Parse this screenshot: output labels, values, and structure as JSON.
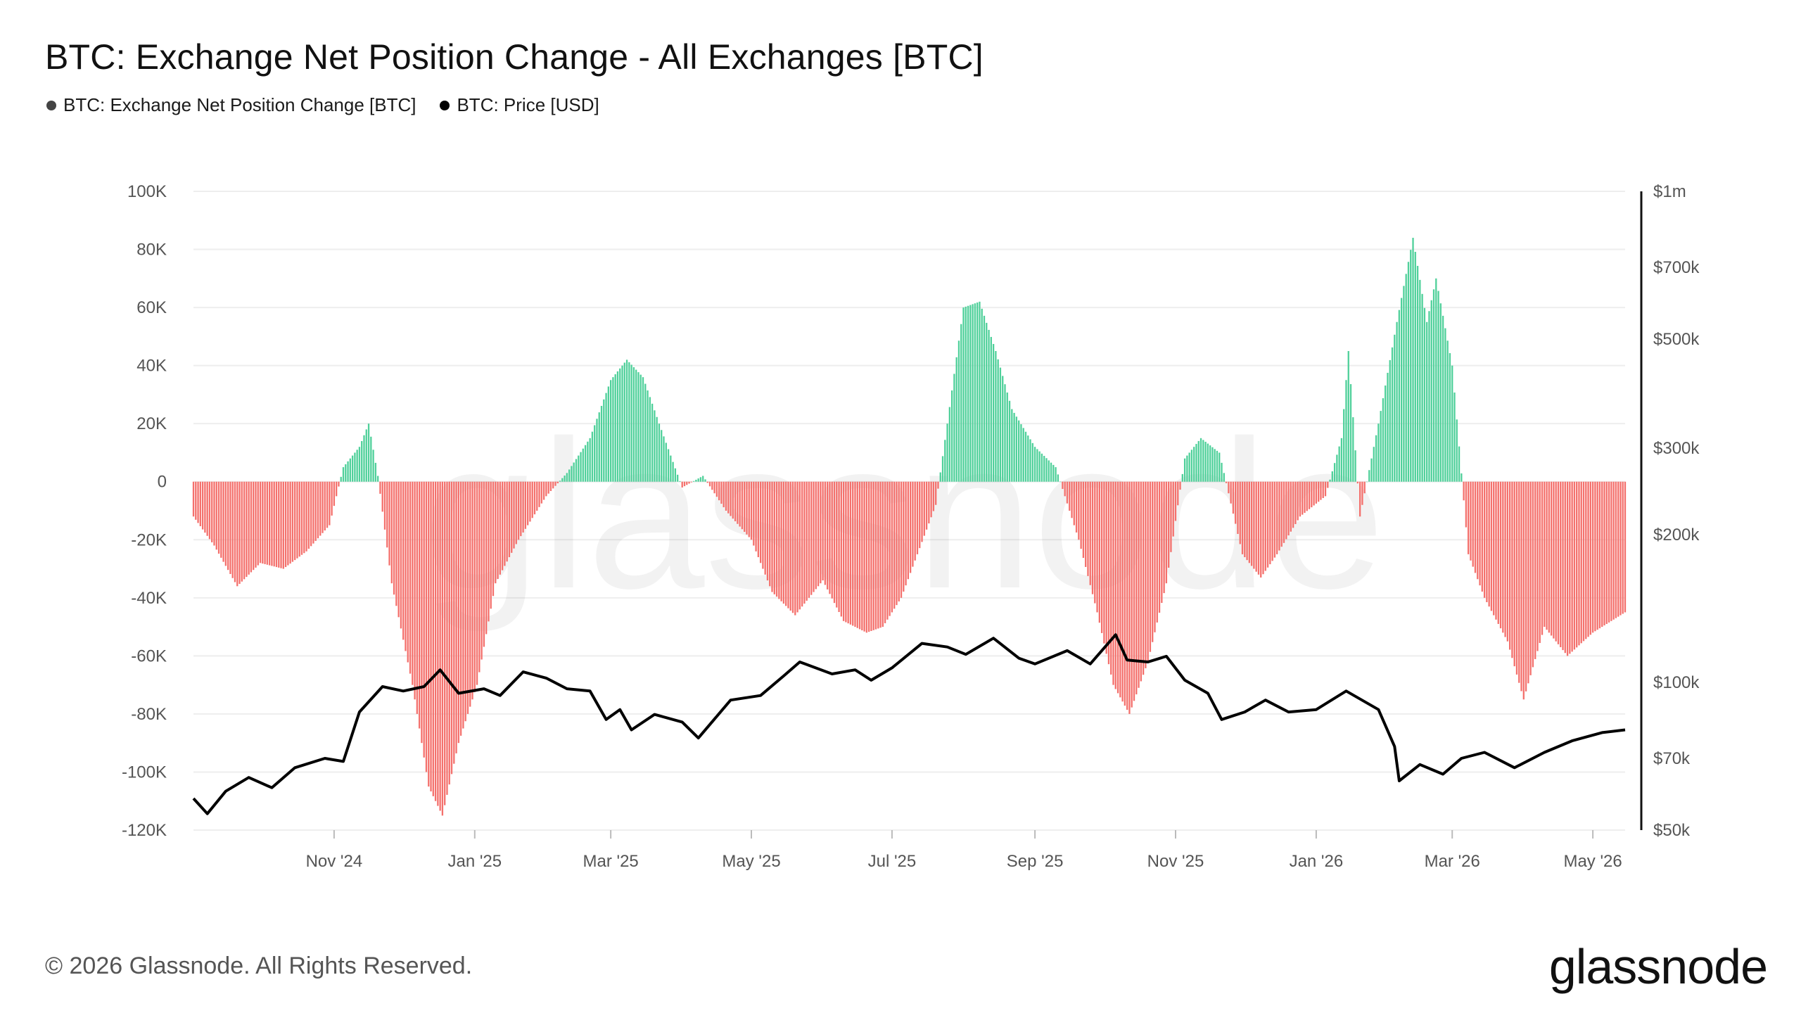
{
  "title": "BTC: Exchange Net Position Change - All Exchanges [BTC]",
  "legend": [
    {
      "label": "BTC: Exchange Net Position Change [BTC]",
      "color": "#444444"
    },
    {
      "label": "BTC: Price [USD]",
      "color": "#000000"
    }
  ],
  "footer": {
    "copyright": "© 2026 Glassnode. All Rights Reserved.",
    "brand": "glassnode"
  },
  "watermark": "glassnode",
  "colors": {
    "positive": "#4fd09a",
    "negative": "#f4706c",
    "price_line": "#000000",
    "grid": "#eeeeee"
  },
  "chart_data": {
    "type": "bar",
    "title": "BTC: Exchange Net Position Change - All Exchanges [BTC]",
    "x_range": [
      "2024-09-01",
      "2026-05-15"
    ],
    "x_ticks": [
      {
        "label": "Nov '24",
        "date": "2024-11-01"
      },
      {
        "label": "Jan '25",
        "date": "2025-01-01"
      },
      {
        "label": "Mar '25",
        "date": "2025-03-01"
      },
      {
        "label": "May '25",
        "date": "2025-05-01"
      },
      {
        "label": "Jul '25",
        "date": "2025-07-01"
      },
      {
        "label": "Sep '25",
        "date": "2025-09-01"
      },
      {
        "label": "Nov '25",
        "date": "2025-11-01"
      },
      {
        "label": "Jan '26",
        "date": "2026-01-01"
      },
      {
        "label": "Mar '26",
        "date": "2026-03-01"
      },
      {
        "label": "May '26",
        "date": "2026-05-01"
      }
    ],
    "y_left": {
      "ylim": [
        -120000,
        100000
      ],
      "ticks": [
        {
          "label": "100K",
          "value": 100000
        },
        {
          "label": "80K",
          "value": 80000
        },
        {
          "label": "60K",
          "value": 60000
        },
        {
          "label": "40K",
          "value": 40000
        },
        {
          "label": "20K",
          "value": 20000
        },
        {
          "label": "0",
          "value": 0
        },
        {
          "label": "-20K",
          "value": -20000
        },
        {
          "label": "-40K",
          "value": -40000
        },
        {
          "label": "-60K",
          "value": -60000
        },
        {
          "label": "-80K",
          "value": -80000
        },
        {
          "label": "-100K",
          "value": -100000
        },
        {
          "label": "-120K",
          "value": -120000
        }
      ]
    },
    "y_right": {
      "scale": "log",
      "ylim": [
        50000,
        1000000
      ],
      "ticks": [
        {
          "label": "$1m",
          "value": 1000000
        },
        {
          "label": "$700k",
          "value": 700000
        },
        {
          "label": "$500k",
          "value": 500000
        },
        {
          "label": "$300k",
          "value": 300000
        },
        {
          "label": "$200k",
          "value": 200000
        },
        {
          "label": "$100k",
          "value": 100000
        },
        {
          "label": "$70k",
          "value": 70000
        },
        {
          "label": "$50k",
          "value": 50000
        }
      ]
    },
    "series": [
      {
        "name": "BTC: Exchange Net Position Change [BTC]",
        "type": "bar",
        "points": [
          [
            "2024-09-01",
            -12000
          ],
          [
            "2024-09-10",
            -22000
          ],
          [
            "2024-09-20",
            -36000
          ],
          [
            "2024-09-30",
            -28000
          ],
          [
            "2024-10-10",
            -30000
          ],
          [
            "2024-10-20",
            -24000
          ],
          [
            "2024-10-30",
            -15000
          ],
          [
            "2024-11-05",
            5000
          ],
          [
            "2024-11-12",
            12000
          ],
          [
            "2024-11-16",
            20000
          ],
          [
            "2024-11-20",
            2000
          ],
          [
            "2024-11-26",
            -35000
          ],
          [
            "2024-12-05",
            -70000
          ],
          [
            "2024-12-12",
            -105000
          ],
          [
            "2024-12-18",
            -115000
          ],
          [
            "2024-12-25",
            -90000
          ],
          [
            "2025-01-02",
            -70000
          ],
          [
            "2025-01-10",
            -35000
          ],
          [
            "2025-01-20",
            -20000
          ],
          [
            "2025-02-01",
            -5000
          ],
          [
            "2025-02-10",
            3000
          ],
          [
            "2025-02-20",
            15000
          ],
          [
            "2025-03-01",
            35000
          ],
          [
            "2025-03-08",
            42000
          ],
          [
            "2025-03-15",
            36000
          ],
          [
            "2025-03-22",
            20000
          ],
          [
            "2025-04-01",
            -2000
          ],
          [
            "2025-04-10",
            2000
          ],
          [
            "2025-04-20",
            -10000
          ],
          [
            "2025-05-01",
            -20000
          ],
          [
            "2025-05-10",
            -38000
          ],
          [
            "2025-05-20",
            -46000
          ],
          [
            "2025-06-01",
            -34000
          ],
          [
            "2025-06-10",
            -48000
          ],
          [
            "2025-06-20",
            -52000
          ],
          [
            "2025-06-27",
            -50000
          ],
          [
            "2025-07-05",
            -40000
          ],
          [
            "2025-07-12",
            -25000
          ],
          [
            "2025-07-20",
            -8000
          ],
          [
            "2025-07-25",
            20000
          ],
          [
            "2025-08-01",
            60000
          ],
          [
            "2025-08-08",
            62000
          ],
          [
            "2025-08-15",
            45000
          ],
          [
            "2025-08-22",
            25000
          ],
          [
            "2025-09-01",
            12000
          ],
          [
            "2025-09-10",
            5000
          ],
          [
            "2025-09-20",
            -20000
          ],
          [
            "2025-09-28",
            -45000
          ],
          [
            "2025-10-05",
            -70000
          ],
          [
            "2025-10-12",
            -80000
          ],
          [
            "2025-10-20",
            -62000
          ],
          [
            "2025-10-28",
            -35000
          ],
          [
            "2025-11-05",
            8000
          ],
          [
            "2025-11-12",
            15000
          ],
          [
            "2025-11-20",
            10000
          ],
          [
            "2025-11-30",
            -25000
          ],
          [
            "2025-12-08",
            -33000
          ],
          [
            "2025-12-15",
            -25000
          ],
          [
            "2025-12-25",
            -12000
          ],
          [
            "2026-01-05",
            -5000
          ],
          [
            "2026-01-12",
            15000
          ],
          [
            "2026-01-15",
            45000
          ],
          [
            "2026-01-20",
            -12000
          ],
          [
            "2026-01-28",
            20000
          ],
          [
            "2026-02-05",
            55000
          ],
          [
            "2026-02-12",
            84000
          ],
          [
            "2026-02-18",
            55000
          ],
          [
            "2026-02-22",
            70000
          ],
          [
            "2026-03-01",
            40000
          ],
          [
            "2026-03-08",
            -25000
          ],
          [
            "2026-03-15",
            -40000
          ],
          [
            "2026-03-25",
            -55000
          ],
          [
            "2026-04-01",
            -75000
          ],
          [
            "2026-04-10",
            -50000
          ],
          [
            "2026-04-20",
            -60000
          ],
          [
            "2026-05-01",
            -52000
          ],
          [
            "2026-05-15",
            -45000
          ]
        ]
      },
      {
        "name": "BTC: Price [USD]",
        "type": "line",
        "points": [
          [
            "2024-09-01",
            58000
          ],
          [
            "2024-09-07",
            54000
          ],
          [
            "2024-09-15",
            60000
          ],
          [
            "2024-09-25",
            64000
          ],
          [
            "2024-10-05",
            61000
          ],
          [
            "2024-10-15",
            67000
          ],
          [
            "2024-10-28",
            70000
          ],
          [
            "2024-11-05",
            69000
          ],
          [
            "2024-11-12",
            87000
          ],
          [
            "2024-11-22",
            98000
          ],
          [
            "2024-12-01",
            96000
          ],
          [
            "2024-12-10",
            98000
          ],
          [
            "2024-12-17",
            106000
          ],
          [
            "2024-12-25",
            95000
          ],
          [
            "2025-01-05",
            97000
          ],
          [
            "2025-01-12",
            94000
          ],
          [
            "2025-01-22",
            105000
          ],
          [
            "2025-02-01",
            102000
          ],
          [
            "2025-02-10",
            97000
          ],
          [
            "2025-02-20",
            96000
          ],
          [
            "2025-02-27",
            84000
          ],
          [
            "2025-03-05",
            88000
          ],
          [
            "2025-03-10",
            80000
          ],
          [
            "2025-03-20",
            86000
          ],
          [
            "2025-04-01",
            83000
          ],
          [
            "2025-04-08",
            77000
          ],
          [
            "2025-04-22",
            92000
          ],
          [
            "2025-05-05",
            94000
          ],
          [
            "2025-05-15",
            103000
          ],
          [
            "2025-05-22",
            110000
          ],
          [
            "2025-06-05",
            104000
          ],
          [
            "2025-06-15",
            106000
          ],
          [
            "2025-06-22",
            101000
          ],
          [
            "2025-07-01",
            107000
          ],
          [
            "2025-07-14",
            120000
          ],
          [
            "2025-07-25",
            118000
          ],
          [
            "2025-08-02",
            114000
          ],
          [
            "2025-08-14",
            123000
          ],
          [
            "2025-08-25",
            112000
          ],
          [
            "2025-09-01",
            109000
          ],
          [
            "2025-09-15",
            116000
          ],
          [
            "2025-09-25",
            109000
          ],
          [
            "2025-10-06",
            125000
          ],
          [
            "2025-10-11",
            111000
          ],
          [
            "2025-10-20",
            110000
          ],
          [
            "2025-10-28",
            113000
          ],
          [
            "2025-11-05",
            101000
          ],
          [
            "2025-11-15",
            95000
          ],
          [
            "2025-11-21",
            84000
          ],
          [
            "2025-12-01",
            87000
          ],
          [
            "2025-12-10",
            92000
          ],
          [
            "2025-12-20",
            87000
          ],
          [
            "2026-01-01",
            88000
          ],
          [
            "2026-01-14",
            96000
          ],
          [
            "2026-01-28",
            88000
          ],
          [
            "2026-02-04",
            74000
          ],
          [
            "2026-02-06",
            63000
          ],
          [
            "2026-02-15",
            68000
          ],
          [
            "2026-02-25",
            65000
          ],
          [
            "2026-03-05",
            70000
          ],
          [
            "2026-03-15",
            72000
          ],
          [
            "2026-03-28",
            67000
          ],
          [
            "2026-04-10",
            72000
          ],
          [
            "2026-04-22",
            76000
          ],
          [
            "2026-05-05",
            79000
          ],
          [
            "2026-05-15",
            80000
          ]
        ]
      }
    ],
    "grid": true,
    "legend_position": "top-left"
  }
}
